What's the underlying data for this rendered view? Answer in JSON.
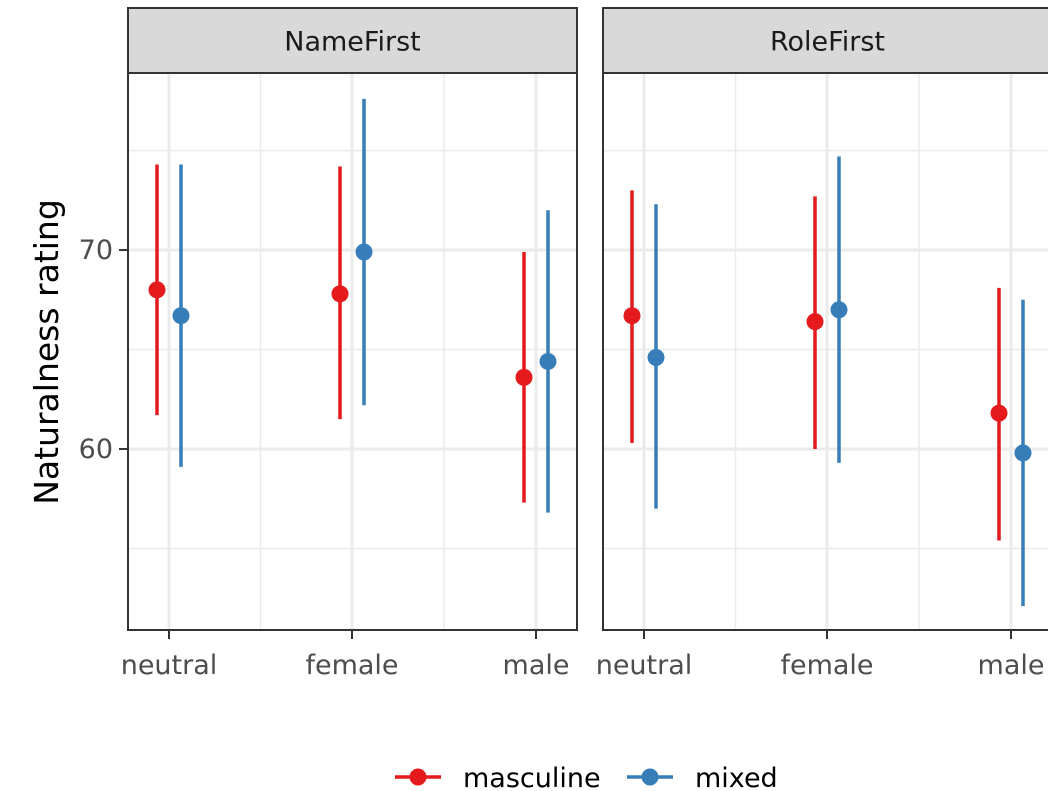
{
  "chart_data": {
    "type": "scatter",
    "subtype": "point-range",
    "ylabel": "Naturalness rating",
    "xlabel": "",
    "ylim": [
      50.9,
      78.9
    ],
    "yticks": [
      60,
      70
    ],
    "grid": true,
    "legend_position": "bottom",
    "categories": [
      "neutral",
      "female",
      "male"
    ],
    "panels": [
      {
        "title": "NameFirst",
        "series": [
          {
            "name": "masculine",
            "color": "#e41a1c",
            "y": [
              68.0,
              67.8,
              63.6
            ],
            "lower": [
              61.7,
              61.5,
              57.3
            ],
            "upper": [
              74.3,
              74.2,
              69.9
            ]
          },
          {
            "name": "mixed",
            "color": "#377eb8",
            "y": [
              66.7,
              69.9,
              64.4
            ],
            "lower": [
              59.1,
              62.2,
              56.8
            ],
            "upper": [
              74.3,
              77.6,
              72.0
            ]
          }
        ]
      },
      {
        "title": "RoleFirst",
        "series": [
          {
            "name": "masculine",
            "color": "#e41a1c",
            "y": [
              66.7,
              66.4,
              61.8
            ],
            "lower": [
              60.3,
              60.0,
              55.4
            ],
            "upper": [
              73.0,
              72.7,
              68.1
            ]
          },
          {
            "name": "mixed",
            "color": "#377eb8",
            "y": [
              64.6,
              67.0,
              59.8
            ],
            "lower": [
              57.0,
              59.3,
              52.1
            ],
            "upper": [
              72.3,
              74.7,
              67.5
            ]
          }
        ]
      }
    ],
    "legend": [
      {
        "name": "masculine",
        "color": "#e41a1c"
      },
      {
        "name": "mixed",
        "color": "#377eb8"
      }
    ]
  }
}
